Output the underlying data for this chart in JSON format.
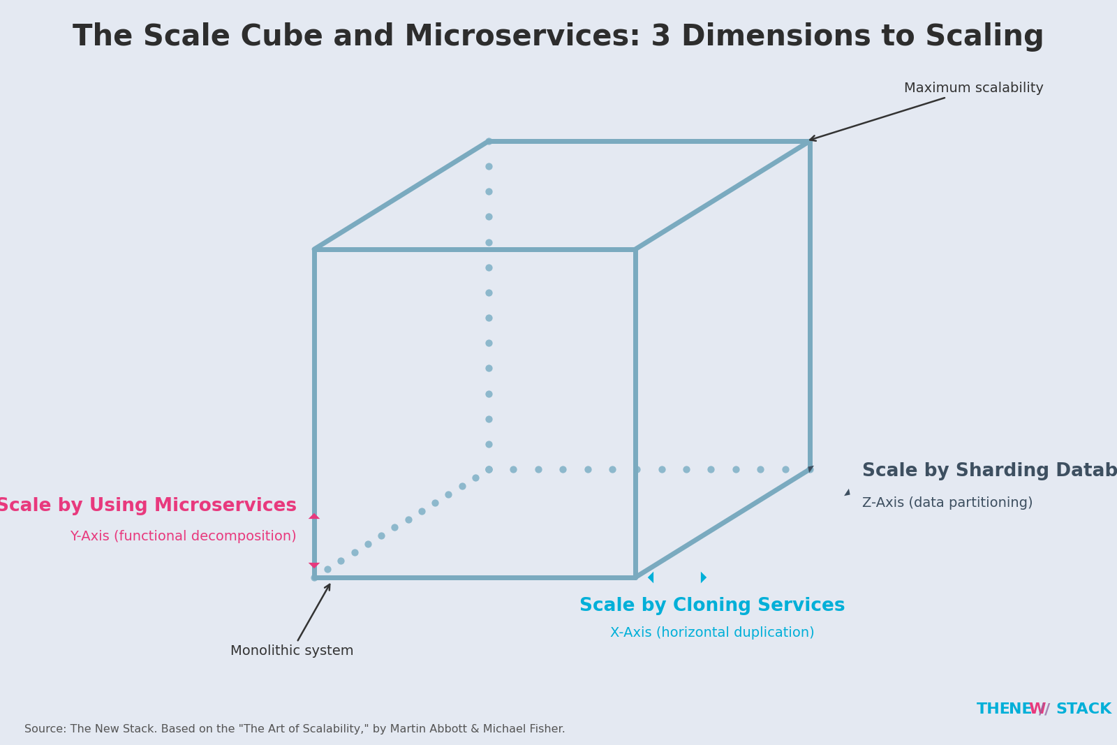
{
  "title": "The Scale Cube and Microservices: 3 Dimensions to Scaling",
  "title_fontsize": 30,
  "title_color": "#2d2d2d",
  "background_color": "#e4e9f2",
  "cube_color": "#7aaabf",
  "cube_linewidth": 5.0,
  "dot_color": "#8db8cc",
  "dot_size": 55,
  "source_text": "Source: The New Stack. Based on the \"The Art of Scalability,\" by Martin Abbott & Michael Fisher.",
  "max_scalability_label": "Maximum scalability",
  "monolithic_label": "Monolithic system",
  "y_axis_label1": "Scale by Using Microservices",
  "y_axis_label2": "Y-Axis (functional decomposition)",
  "y_axis_color": "#e8397d",
  "x_axis_label1": "Scale by Cloning Services",
  "x_axis_label2": "X-Axis (horizontal duplication)",
  "x_axis_color": "#00afd8",
  "z_axis_label1": "Scale by Sharding Databases",
  "z_axis_label2": "Z-Axis (data partitioning)",
  "z_axis_color": "#3d4f60",
  "thenewstack_cyan": "#00afd8",
  "thenewstack_pink": "#e8397d",
  "annotation_color": "#333333",
  "annotation_fontsize": 14,
  "label_fontsize_big": 19,
  "label_fontsize_small": 14
}
